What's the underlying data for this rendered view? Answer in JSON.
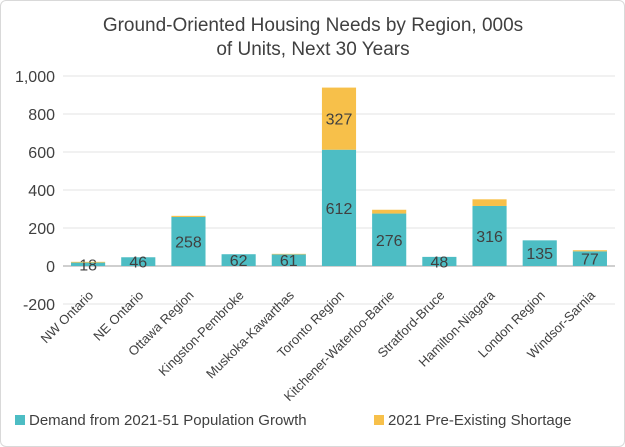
{
  "chart_data": {
    "type": "bar",
    "stacked": true,
    "title_lines": [
      "Ground-Oriented Housing Needs by Region, 000s",
      "of Units, Next 30 Years"
    ],
    "categories": [
      "NW Ontario",
      "NE Ontario",
      "Ottawa Region",
      "Kingston-Pembroke",
      "Muskoka-Kawarthas",
      "Toronto Region",
      "Kitchener-Waterloo-Barrie",
      "Stratford-Bruce",
      "Hamilton-Niagara",
      "London Region",
      "Windsor-Sarnia"
    ],
    "series": [
      {
        "name": "Demand from 2021-51 Population Growth",
        "color": "#4dbdc4",
        "values": [
          18,
          46,
          258,
          62,
          61,
          612,
          276,
          48,
          316,
          135,
          77
        ],
        "labels": [
          "18",
          "46",
          "258",
          "62",
          "61",
          "612",
          "276",
          "48",
          "316",
          "135",
          "77"
        ]
      },
      {
        "name": "2021 Pre-Existing Shortage",
        "color": "#f7c04a",
        "values": [
          4,
          0,
          6,
          0,
          3,
          327,
          20,
          0,
          35,
          0,
          6
        ],
        "labels": [
          "",
          "",
          "",
          "",
          "",
          "327",
          "",
          "",
          "",
          "",
          ""
        ]
      }
    ],
    "yticks": [
      "-200",
      "0",
      "200",
      "400",
      "600",
      "800",
      "1,000"
    ],
    "ytick_values": [
      -200,
      0,
      200,
      400,
      600,
      800,
      1000
    ],
    "ylim": [
      -200,
      1000
    ],
    "grid": true,
    "legend": "bottom"
  }
}
